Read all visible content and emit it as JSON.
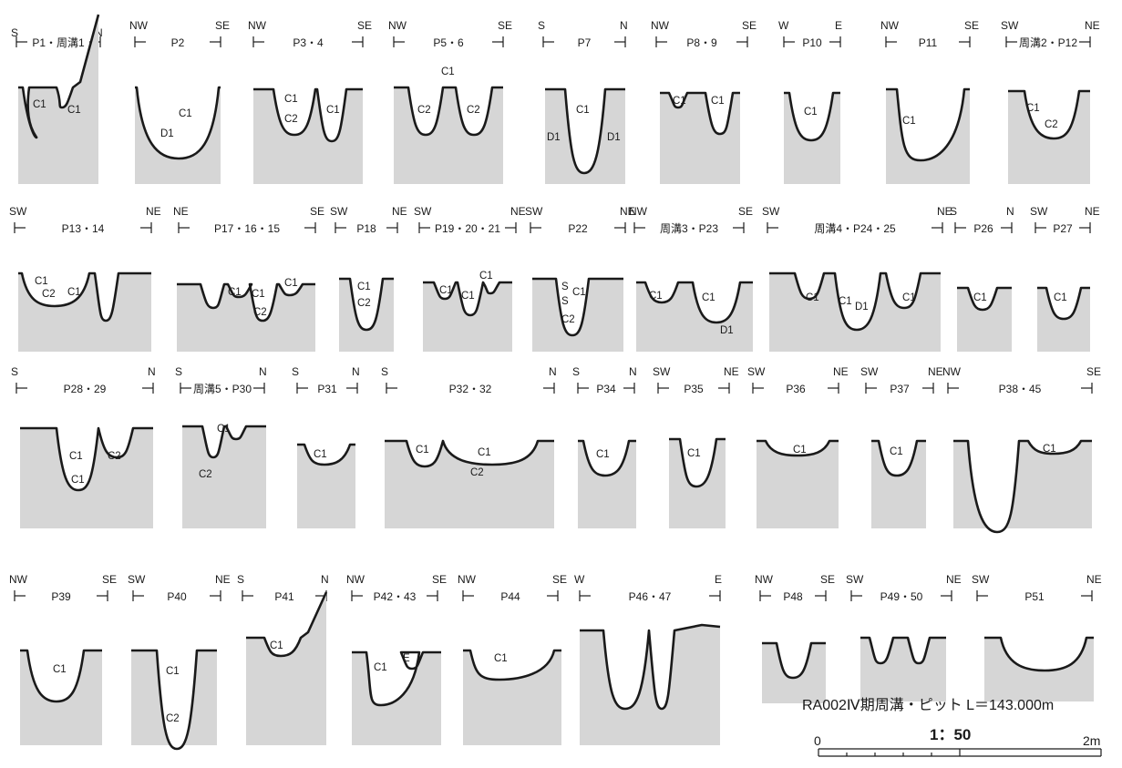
{
  "colors": {
    "soil": "#d6d6d6",
    "line": "#1a1a1a",
    "paper": "#ffffff"
  },
  "title": "RA002Ⅳ期周溝・ピット L＝143.000m",
  "scale": {
    "ratio": "1：50",
    "zero": "0",
    "end": "2m"
  },
  "sections": [
    {
      "label": "P1・周溝1",
      "left": "S",
      "right": "N"
    },
    {
      "label": "P2",
      "left": "NW",
      "right": "SE"
    },
    {
      "label": "P3・4",
      "left": "NW",
      "right": "SE"
    },
    {
      "label": "P5・6",
      "left": "NW",
      "right": "SE"
    },
    {
      "label": "P7",
      "left": "S",
      "right": "N"
    },
    {
      "label": "P8・9",
      "left": "NW",
      "right": "SE"
    },
    {
      "label": "P10",
      "left": "W",
      "right": "E"
    },
    {
      "label": "P11",
      "left": "NW",
      "right": "SE"
    },
    {
      "label": "周溝2・P12",
      "left": "SW",
      "right": "NE"
    },
    {
      "label": "P13・14",
      "left": "SW",
      "right": "NE"
    },
    {
      "label": "P17・16・15",
      "left": "NE",
      "right": "SE"
    },
    {
      "label": "P18",
      "left": "SW",
      "right": "NE"
    },
    {
      "label": "P19・20・21",
      "left": "SW",
      "right": "NE"
    },
    {
      "label": "P22",
      "left": "SW",
      "right": "NE"
    },
    {
      "label": "周溝3・P23",
      "left": "NW",
      "right": "SE"
    },
    {
      "label": "周溝4・P24・25",
      "left": "SW",
      "right": "NE"
    },
    {
      "label": "P26",
      "left": "S",
      "right": "N"
    },
    {
      "label": "P27",
      "left": "SW",
      "right": "NE"
    },
    {
      "label": "P28・29",
      "left": "S",
      "right": "N"
    },
    {
      "label": "周溝5・P30",
      "left": "S",
      "right": "N"
    },
    {
      "label": "P31",
      "left": "S",
      "right": "N"
    },
    {
      "label": "P32・32",
      "left": "S",
      "right": "N"
    },
    {
      "label": "P34",
      "left": "S",
      "right": "N"
    },
    {
      "label": "P35",
      "left": "SW",
      "right": "NE"
    },
    {
      "label": "P36",
      "left": "SW",
      "right": "NE"
    },
    {
      "label": "P37",
      "left": "SW",
      "right": "NE"
    },
    {
      "label": "P38・45",
      "left": "NW",
      "right": "SE"
    },
    {
      "label": "P39",
      "left": "NW",
      "right": "SE"
    },
    {
      "label": "P40",
      "left": "SW",
      "right": "NE"
    },
    {
      "label": "P41",
      "left": "S",
      "right": "N"
    },
    {
      "label": "P42・43",
      "left": "NW",
      "right": "SE"
    },
    {
      "label": "P44",
      "left": "NW",
      "right": "SE"
    },
    {
      "label": "P46・47",
      "left": "W",
      "right": "E"
    },
    {
      "label": "P48",
      "left": "NW",
      "right": "SE"
    },
    {
      "label": "P49・50",
      "left": "SW",
      "right": "NE"
    },
    {
      "label": "P51",
      "left": "SW",
      "right": "NE"
    }
  ],
  "layers": [
    {
      "section": 0,
      "text": "C1"
    },
    {
      "section": 0,
      "text": "C1"
    },
    {
      "section": 1,
      "text": "C1"
    },
    {
      "section": 1,
      "text": "D1"
    },
    {
      "section": 2,
      "text": "C1"
    },
    {
      "section": 2,
      "text": "C2"
    },
    {
      "section": 2,
      "text": "C1"
    },
    {
      "section": 3,
      "text": "C1"
    },
    {
      "section": 3,
      "text": "C2"
    },
    {
      "section": 3,
      "text": "C2"
    },
    {
      "section": 4,
      "text": "C1"
    },
    {
      "section": 4,
      "text": "D1"
    },
    {
      "section": 4,
      "text": "D1"
    },
    {
      "section": 5,
      "text": "C1"
    },
    {
      "section": 5,
      "text": "C1"
    },
    {
      "section": 6,
      "text": "C1"
    },
    {
      "section": 7,
      "text": "C1"
    },
    {
      "section": 8,
      "text": "C1"
    },
    {
      "section": 8,
      "text": "C2"
    },
    {
      "section": 9,
      "text": "C1"
    },
    {
      "section": 9,
      "text": "C2"
    },
    {
      "section": 9,
      "text": "C1"
    },
    {
      "section": 10,
      "text": "C1"
    },
    {
      "section": 10,
      "text": "C1"
    },
    {
      "section": 10,
      "text": "C2"
    },
    {
      "section": 10,
      "text": "C1"
    },
    {
      "section": 11,
      "text": "C1"
    },
    {
      "section": 11,
      "text": "C2"
    },
    {
      "section": 12,
      "text": "C1"
    },
    {
      "section": 12,
      "text": "C1"
    },
    {
      "section": 12,
      "text": "C1"
    },
    {
      "section": 13,
      "text": "S"
    },
    {
      "section": 13,
      "text": "C1"
    },
    {
      "section": 13,
      "text": "S"
    },
    {
      "section": 13,
      "text": "C2"
    },
    {
      "section": 14,
      "text": "C1"
    },
    {
      "section": 14,
      "text": "C1"
    },
    {
      "section": 14,
      "text": "D1"
    },
    {
      "section": 15,
      "text": "C1"
    },
    {
      "section": 15,
      "text": "C1"
    },
    {
      "section": 15,
      "text": "D1"
    },
    {
      "section": 15,
      "text": "C1"
    },
    {
      "section": 16,
      "text": "C1"
    },
    {
      "section": 17,
      "text": "C1"
    },
    {
      "section": 18,
      "text": "C1"
    },
    {
      "section": 18,
      "text": "C1"
    },
    {
      "section": 18,
      "text": "C2"
    },
    {
      "section": 19,
      "text": "C1"
    },
    {
      "section": 19,
      "text": "C2"
    },
    {
      "section": 20,
      "text": "C1"
    },
    {
      "section": 21,
      "text": "C1"
    },
    {
      "section": 21,
      "text": "C1"
    },
    {
      "section": 21,
      "text": "C2"
    },
    {
      "section": 22,
      "text": "C1"
    },
    {
      "section": 23,
      "text": "C1"
    },
    {
      "section": 24,
      "text": "C1"
    },
    {
      "section": 25,
      "text": "C1"
    },
    {
      "section": 26,
      "text": "C1"
    },
    {
      "section": 27,
      "text": "C1"
    },
    {
      "section": 28,
      "text": "C1"
    },
    {
      "section": 28,
      "text": "C2"
    },
    {
      "section": 29,
      "text": "C1"
    },
    {
      "section": 30,
      "text": "C1"
    },
    {
      "section": 30,
      "text": "E"
    },
    {
      "section": 31,
      "text": "C1"
    }
  ]
}
